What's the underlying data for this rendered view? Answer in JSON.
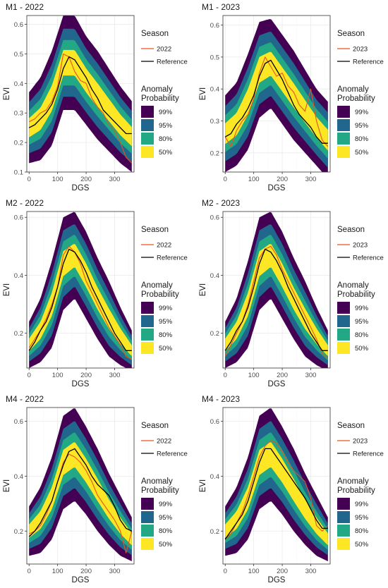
{
  "chart_data": [
    {
      "type": "area",
      "title": "M1 - 2022",
      "xlabel": "DGS",
      "ylabel": "EVI",
      "xlim": [
        -8,
        368
      ],
      "ylim": [
        0.1,
        0.63
      ],
      "xticks": [
        0,
        100,
        200,
        300
      ],
      "yticks": [
        0.1,
        0.2,
        0.3,
        0.4,
        0.5,
        0.6
      ],
      "ytick_labels": [
        "0.1",
        "0.2",
        "0.3",
        "0.4",
        "0.5",
        "0.6"
      ],
      "grid": true,
      "envelope": {
        "x": [
          0,
          40,
          80,
          120,
          160,
          200,
          240,
          280,
          320,
          360
        ],
        "median": [
          0.25,
          0.28,
          0.35,
          0.47,
          0.47,
          0.41,
          0.36,
          0.31,
          0.26,
          0.22
        ],
        "half_width_99": [
          0.12,
          0.14,
          0.16,
          0.16,
          0.16,
          0.15,
          0.15,
          0.14,
          0.13,
          0.12
        ]
      },
      "series": [
        {
          "name": "2022",
          "color": "#e8541c",
          "x": [
            0,
            20,
            40,
            60,
            80,
            100,
            120,
            140,
            160,
            180,
            200,
            220,
            240,
            260,
            280,
            300,
            320,
            340,
            360
          ],
          "values": [
            0.27,
            0.28,
            0.3,
            0.31,
            0.34,
            0.39,
            0.5,
            0.49,
            0.44,
            0.41,
            0.4,
            0.35,
            0.32,
            0.3,
            0.26,
            0.24,
            0.2,
            0.15,
            0.13
          ]
        },
        {
          "name": "Reference",
          "color": "#000000",
          "x": [
            0,
            20,
            40,
            60,
            80,
            100,
            120,
            140,
            160,
            180,
            200,
            220,
            240,
            260,
            280,
            300,
            320,
            340,
            360
          ],
          "values": [
            0.25,
            0.26,
            0.28,
            0.3,
            0.33,
            0.38,
            0.45,
            0.49,
            0.48,
            0.45,
            0.42,
            0.38,
            0.35,
            0.31,
            0.29,
            0.27,
            0.25,
            0.23,
            0.23
          ]
        }
      ],
      "legend": {
        "position": "right",
        "season_title": "Season",
        "series_labels": [
          "2022",
          "Reference"
        ],
        "anomaly_title_line1": "Anomaly",
        "anomaly_title_line2": "Probability",
        "bands": [
          {
            "label": "99%",
            "color": "#440154"
          },
          {
            "label": "95%",
            "color": "#21668d"
          },
          {
            "label": "80%",
            "color": "#22a884"
          },
          {
            "label": "50%",
            "color": "#fde725"
          }
        ]
      }
    },
    {
      "type": "area",
      "title": "M1 - 2023",
      "xlabel": "DGS",
      "ylabel": "EVI",
      "xlim": [
        -8,
        368
      ],
      "ylim": [
        0.14,
        0.63
      ],
      "xticks": [
        0,
        100,
        200,
        300
      ],
      "yticks": [
        0.2,
        0.3,
        0.4,
        0.5,
        0.6
      ],
      "ytick_labels": [
        "0.2",
        "0.3",
        "0.4",
        "0.5",
        "0.6"
      ],
      "grid": true,
      "envelope": {
        "x": [
          0,
          40,
          80,
          120,
          160,
          200,
          240,
          280,
          320,
          360
        ],
        "median": [
          0.26,
          0.29,
          0.36,
          0.46,
          0.48,
          0.43,
          0.38,
          0.33,
          0.28,
          0.24
        ],
        "half_width_99": [
          0.12,
          0.13,
          0.15,
          0.15,
          0.14,
          0.14,
          0.14,
          0.13,
          0.12,
          0.12
        ]
      },
      "series": [
        {
          "name": "2023",
          "color": "#e8541c",
          "x": [
            0,
            20,
            40,
            60,
            80,
            100,
            120,
            140,
            160,
            180,
            200,
            220,
            240,
            260,
            280,
            300,
            320,
            340,
            360
          ],
          "values": [
            0.25,
            0.22,
            0.27,
            0.3,
            0.32,
            0.37,
            0.45,
            0.5,
            0.47,
            0.44,
            0.45,
            0.41,
            0.39,
            0.35,
            0.33,
            0.4,
            0.3,
            0.24,
            0.22
          ]
        },
        {
          "name": "Reference",
          "color": "#000000",
          "x": [
            0,
            20,
            40,
            60,
            80,
            100,
            120,
            140,
            160,
            180,
            200,
            220,
            240,
            260,
            280,
            300,
            320,
            340,
            360
          ],
          "values": [
            0.25,
            0.26,
            0.29,
            0.31,
            0.34,
            0.38,
            0.44,
            0.48,
            0.49,
            0.46,
            0.43,
            0.39,
            0.35,
            0.32,
            0.3,
            0.28,
            0.25,
            0.23,
            0.23
          ]
        }
      ],
      "legend": {
        "position": "right",
        "season_title": "Season",
        "series_labels": [
          "2023",
          "Reference"
        ],
        "anomaly_title_line1": "Anomaly",
        "anomaly_title_line2": "Probability",
        "bands": [
          {
            "label": "99%",
            "color": "#440154"
          },
          {
            "label": "95%",
            "color": "#21668d"
          },
          {
            "label": "80%",
            "color": "#22a884"
          },
          {
            "label": "50%",
            "color": "#fde725"
          }
        ]
      }
    },
    {
      "type": "area",
      "title": "M2 - 2022",
      "xlabel": "DGS",
      "ylabel": "EVI",
      "xlim": [
        -8,
        368
      ],
      "ylim": [
        0.08,
        0.62
      ],
      "xticks": [
        0,
        100,
        200,
        300
      ],
      "yticks": [
        0.2,
        0.4,
        0.6
      ],
      "ytick_labels": [
        "0.2",
        "0.4",
        "0.6"
      ],
      "grid": true,
      "envelope": {
        "x": [
          0,
          40,
          80,
          120,
          160,
          200,
          240,
          280,
          320,
          360
        ],
        "median": [
          0.16,
          0.21,
          0.3,
          0.44,
          0.47,
          0.4,
          0.32,
          0.25,
          0.19,
          0.14
        ],
        "half_width_99": [
          0.08,
          0.11,
          0.15,
          0.16,
          0.15,
          0.15,
          0.14,
          0.13,
          0.1,
          0.07
        ]
      },
      "series": [
        {
          "name": "2022",
          "color": "#e8541c",
          "x": [
            0,
            20,
            40,
            60,
            80,
            100,
            120,
            140,
            160,
            180,
            200,
            220,
            240,
            260,
            280,
            300,
            320,
            340,
            360
          ],
          "values": [
            0.15,
            0.18,
            0.21,
            0.25,
            0.3,
            0.36,
            0.47,
            0.5,
            0.48,
            0.44,
            0.38,
            0.34,
            0.3,
            0.26,
            0.22,
            0.19,
            0.16,
            0.12,
            0.11
          ]
        },
        {
          "name": "Reference",
          "color": "#000000",
          "x": [
            0,
            20,
            40,
            60,
            80,
            100,
            120,
            140,
            160,
            180,
            200,
            220,
            240,
            260,
            280,
            300,
            320,
            340,
            360
          ],
          "values": [
            0.14,
            0.17,
            0.21,
            0.24,
            0.29,
            0.36,
            0.44,
            0.49,
            0.48,
            0.45,
            0.41,
            0.36,
            0.32,
            0.28,
            0.24,
            0.2,
            0.17,
            0.14,
            0.14
          ]
        }
      ],
      "legend": {
        "position": "right",
        "season_title": "Season",
        "series_labels": [
          "2022",
          "Reference"
        ],
        "anomaly_title_line1": "Anomaly",
        "anomaly_title_line2": "Probability",
        "bands": [
          {
            "label": "99%",
            "color": "#440154"
          },
          {
            "label": "95%",
            "color": "#21668d"
          },
          {
            "label": "80%",
            "color": "#22a884"
          },
          {
            "label": "50%",
            "color": "#fde725"
          }
        ]
      }
    },
    {
      "type": "area",
      "title": "M2 - 2023",
      "xlabel": "DGS",
      "ylabel": "EVI",
      "xlim": [
        -8,
        368
      ],
      "ylim": [
        0.08,
        0.62
      ],
      "xticks": [
        0,
        100,
        200,
        300
      ],
      "yticks": [
        0.2,
        0.4,
        0.6
      ],
      "ytick_labels": [
        "0.2",
        "0.4",
        "0.6"
      ],
      "grid": true,
      "envelope": {
        "x": [
          0,
          40,
          80,
          120,
          160,
          200,
          240,
          280,
          320,
          360
        ],
        "median": [
          0.16,
          0.21,
          0.3,
          0.44,
          0.47,
          0.4,
          0.32,
          0.25,
          0.19,
          0.14
        ],
        "half_width_99": [
          0.08,
          0.11,
          0.15,
          0.16,
          0.15,
          0.15,
          0.14,
          0.13,
          0.1,
          0.07
        ]
      },
      "series": [
        {
          "name": "2023",
          "color": "#e8541c",
          "x": [
            0,
            20,
            40,
            60,
            80,
            100,
            120,
            140,
            160,
            180,
            200,
            220,
            240,
            260,
            280,
            300,
            320,
            340,
            360
          ],
          "values": [
            0.12,
            0.16,
            0.2,
            0.24,
            0.3,
            0.38,
            0.46,
            0.49,
            0.5,
            0.47,
            0.42,
            0.38,
            0.34,
            0.3,
            0.26,
            0.22,
            0.18,
            0.13,
            0.11
          ]
        },
        {
          "name": "Reference",
          "color": "#000000",
          "x": [
            0,
            20,
            40,
            60,
            80,
            100,
            120,
            140,
            160,
            180,
            200,
            220,
            240,
            260,
            280,
            300,
            320,
            340,
            360
          ],
          "values": [
            0.14,
            0.17,
            0.21,
            0.24,
            0.29,
            0.36,
            0.44,
            0.49,
            0.48,
            0.45,
            0.41,
            0.36,
            0.32,
            0.28,
            0.24,
            0.2,
            0.17,
            0.14,
            0.14
          ]
        }
      ],
      "legend": {
        "position": "right",
        "season_title": "Season",
        "series_labels": [
          "2023",
          "Reference"
        ],
        "anomaly_title_line1": "Anomaly",
        "anomaly_title_line2": "Probability",
        "bands": [
          {
            "label": "99%",
            "color": "#440154"
          },
          {
            "label": "95%",
            "color": "#21668d"
          },
          {
            "label": "80%",
            "color": "#22a884"
          },
          {
            "label": "50%",
            "color": "#fde725"
          }
        ]
      }
    },
    {
      "type": "area",
      "title": "M4 - 2022",
      "xlabel": "DGS",
      "ylabel": "EVI",
      "xlim": [
        -8,
        368
      ],
      "ylim": [
        0.08,
        0.65
      ],
      "xticks": [
        0,
        100,
        200,
        300
      ],
      "yticks": [
        0.2,
        0.4,
        0.6
      ],
      "ytick_labels": [
        "0.2",
        "0.4",
        "0.6"
      ],
      "grid": true,
      "envelope": {
        "x": [
          0,
          40,
          80,
          120,
          160,
          200,
          240,
          280,
          320,
          360
        ],
        "median": [
          0.2,
          0.24,
          0.32,
          0.45,
          0.48,
          0.42,
          0.35,
          0.28,
          0.22,
          0.17
        ],
        "half_width_99": [
          0.09,
          0.12,
          0.15,
          0.17,
          0.17,
          0.16,
          0.15,
          0.13,
          0.11,
          0.08
        ]
      },
      "series": [
        {
          "name": "2022",
          "color": "#e8541c",
          "x": [
            0,
            20,
            40,
            60,
            80,
            100,
            120,
            140,
            160,
            180,
            200,
            220,
            240,
            260,
            280,
            300,
            320,
            340,
            360
          ],
          "values": [
            0.19,
            0.2,
            0.22,
            0.26,
            0.31,
            0.38,
            0.45,
            0.48,
            0.47,
            0.45,
            0.42,
            0.38,
            0.33,
            0.3,
            0.27,
            0.24,
            0.2,
            0.12,
            0.2
          ]
        },
        {
          "name": "Reference",
          "color": "#000000",
          "x": [
            0,
            20,
            40,
            60,
            80,
            100,
            120,
            140,
            160,
            180,
            200,
            220,
            240,
            260,
            280,
            300,
            320,
            340,
            360
          ],
          "values": [
            0.18,
            0.2,
            0.23,
            0.27,
            0.31,
            0.38,
            0.44,
            0.49,
            0.5,
            0.47,
            0.44,
            0.4,
            0.37,
            0.35,
            0.33,
            0.29,
            0.24,
            0.21,
            0.2
          ]
        }
      ],
      "legend": {
        "position": "right",
        "season_title": "Season",
        "series_labels": [
          "2022",
          "Reference"
        ],
        "anomaly_title_line1": "Anomaly",
        "anomaly_title_line2": "Probability",
        "bands": [
          {
            "label": "99%",
            "color": "#440154"
          },
          {
            "label": "95%",
            "color": "#21668d"
          },
          {
            "label": "80%",
            "color": "#22a884"
          },
          {
            "label": "50%",
            "color": "#fde725"
          }
        ]
      }
    },
    {
      "type": "area",
      "title": "M4 - 2023",
      "xlabel": "DGS",
      "ylabel": "EVI",
      "xlim": [
        -8,
        368
      ],
      "ylim": [
        0.08,
        0.65
      ],
      "xticks": [
        0,
        100,
        200,
        300
      ],
      "yticks": [
        0.2,
        0.4,
        0.6
      ],
      "ytick_labels": [
        "0.2",
        "0.4",
        "0.6"
      ],
      "grid": true,
      "envelope": {
        "x": [
          0,
          40,
          80,
          120,
          160,
          200,
          240,
          280,
          320,
          360
        ],
        "median": [
          0.2,
          0.24,
          0.32,
          0.45,
          0.48,
          0.42,
          0.35,
          0.28,
          0.22,
          0.17
        ],
        "half_width_99": [
          0.09,
          0.12,
          0.15,
          0.17,
          0.17,
          0.16,
          0.15,
          0.13,
          0.11,
          0.08
        ]
      },
      "series": [
        {
          "name": "2023",
          "color": "#e8541c",
          "x": [
            0,
            20,
            40,
            60,
            80,
            100,
            120,
            140,
            160,
            180,
            200,
            220,
            240,
            260,
            280,
            300,
            320,
            340,
            360
          ],
          "values": [
            0.17,
            0.19,
            0.23,
            0.27,
            0.33,
            0.4,
            0.47,
            0.51,
            0.53,
            0.52,
            0.49,
            0.45,
            0.42,
            0.4,
            0.38,
            0.32,
            0.22,
            0.2,
            0.22
          ]
        },
        {
          "name": "Reference",
          "color": "#000000",
          "x": [
            0,
            20,
            40,
            60,
            80,
            100,
            120,
            140,
            160,
            180,
            200,
            220,
            240,
            260,
            280,
            300,
            320,
            340,
            360
          ],
          "values": [
            0.17,
            0.2,
            0.23,
            0.26,
            0.31,
            0.38,
            0.45,
            0.5,
            0.5,
            0.47,
            0.44,
            0.41,
            0.38,
            0.35,
            0.32,
            0.28,
            0.24,
            0.21,
            0.21
          ]
        }
      ],
      "legend": {
        "position": "right",
        "season_title": "Season",
        "series_labels": [
          "2023",
          "Reference"
        ],
        "anomaly_title_line1": "Anomaly",
        "anomaly_title_line2": "Probability",
        "bands": [
          {
            "label": "99%",
            "color": "#440154"
          },
          {
            "label": "95%",
            "color": "#21668d"
          },
          {
            "label": "80%",
            "color": "#22a884"
          },
          {
            "label": "50%",
            "color": "#fde725"
          }
        ]
      }
    }
  ]
}
